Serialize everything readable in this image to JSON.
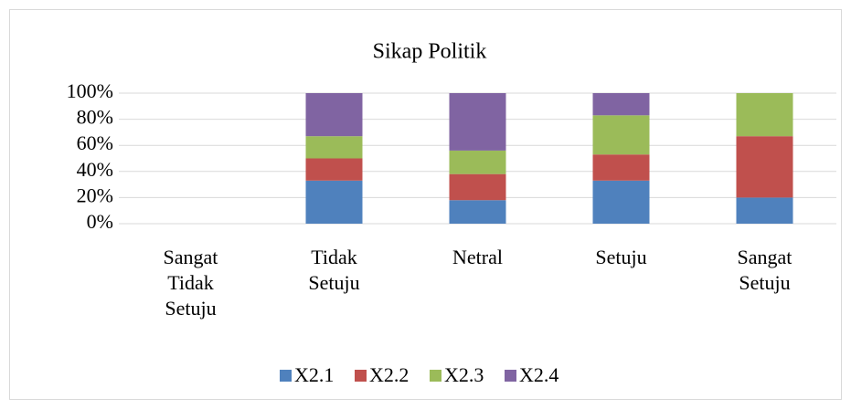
{
  "chart_data": {
    "type": "bar",
    "stacked": true,
    "title": "Sikap Politik",
    "categories": [
      "Sangat Tidak Setuju",
      "Tidak Setuju",
      "Netral",
      "Setuju",
      "Sangat Setuju"
    ],
    "series": [
      {
        "name": "X2.1",
        "color": "#4f81bd",
        "values": [
          0,
          33,
          18,
          33,
          20
        ]
      },
      {
        "name": "X2.2",
        "color": "#c0504d",
        "values": [
          0,
          17,
          20,
          20,
          47
        ]
      },
      {
        "name": "X2.3",
        "color": "#9bbb59",
        "values": [
          0,
          17,
          18,
          30,
          33
        ]
      },
      {
        "name": "X2.4",
        "color": "#8064a2",
        "values": [
          0,
          33,
          44,
          17,
          0
        ]
      }
    ],
    "ylim": [
      0,
      100
    ],
    "yticks": [
      {
        "value": 0,
        "label": "0%"
      },
      {
        "value": 20,
        "label": "20%"
      },
      {
        "value": 40,
        "label": "40%"
      },
      {
        "value": 60,
        "label": "60%"
      },
      {
        "value": 80,
        "label": "80%"
      },
      {
        "value": 100,
        "label": "100%"
      }
    ],
    "grid": true,
    "legend": "bottom"
  }
}
